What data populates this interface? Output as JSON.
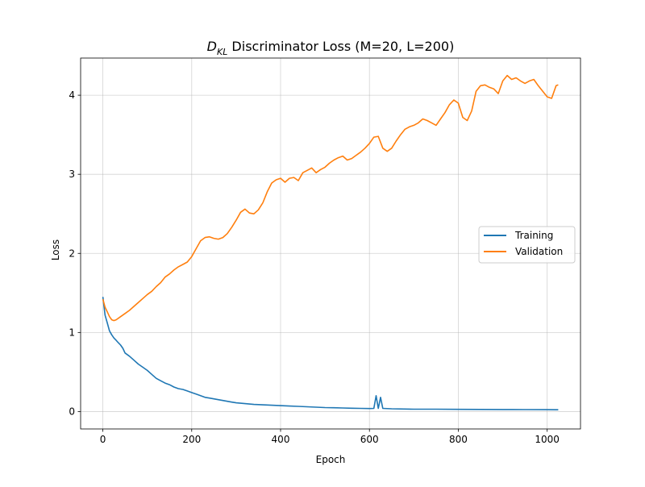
{
  "chart_data": {
    "type": "line",
    "title_main": "D",
    "title_sub": "KL",
    "title_rest": " Discriminator Loss (M=20, L=200)",
    "xlabel": "Epoch",
    "ylabel": "Loss",
    "xlim": [
      -50,
      1075
    ],
    "ylim": [
      -0.22,
      4.47
    ],
    "xticks": [
      0,
      200,
      400,
      600,
      800,
      1000
    ],
    "yticks": [
      0,
      1,
      2,
      3,
      4
    ],
    "grid": true,
    "legend_position": "center-right",
    "series": [
      {
        "name": "Training",
        "color": "#1f77b4",
        "x": [
          0,
          5,
          10,
          15,
          20,
          25,
          30,
          35,
          40,
          45,
          50,
          60,
          70,
          80,
          90,
          100,
          110,
          120,
          130,
          140,
          150,
          160,
          170,
          180,
          190,
          200,
          210,
          220,
          230,
          240,
          250,
          260,
          270,
          280,
          290,
          300,
          320,
          340,
          360,
          380,
          400,
          420,
          440,
          460,
          480,
          500,
          520,
          540,
          560,
          580,
          600,
          610,
          615,
          620,
          625,
          630,
          650,
          700,
          750,
          800,
          850,
          900,
          950,
          1000,
          1020,
          1025
        ],
        "y": [
          1.45,
          1.22,
          1.12,
          1.02,
          0.97,
          0.93,
          0.9,
          0.87,
          0.84,
          0.8,
          0.74,
          0.7,
          0.65,
          0.6,
          0.56,
          0.52,
          0.47,
          0.42,
          0.39,
          0.36,
          0.34,
          0.31,
          0.29,
          0.28,
          0.26,
          0.24,
          0.22,
          0.2,
          0.18,
          0.17,
          0.16,
          0.15,
          0.14,
          0.13,
          0.12,
          0.11,
          0.1,
          0.09,
          0.085,
          0.08,
          0.075,
          0.07,
          0.065,
          0.06,
          0.055,
          0.05,
          0.048,
          0.045,
          0.042,
          0.04,
          0.038,
          0.04,
          0.2,
          0.04,
          0.18,
          0.04,
          0.035,
          0.03,
          0.03,
          0.028,
          0.027,
          0.026,
          0.025,
          0.024,
          0.023,
          0.023
        ]
      },
      {
        "name": "Validation",
        "color": "#ff7f0e",
        "x": [
          0,
          5,
          10,
          15,
          20,
          25,
          30,
          40,
          50,
          60,
          70,
          80,
          90,
          100,
          110,
          120,
          130,
          140,
          150,
          160,
          170,
          180,
          190,
          200,
          210,
          220,
          230,
          240,
          250,
          260,
          270,
          280,
          290,
          300,
          310,
          320,
          330,
          340,
          350,
          360,
          370,
          380,
          390,
          400,
          410,
          420,
          430,
          440,
          450,
          460,
          470,
          480,
          490,
          500,
          510,
          520,
          530,
          540,
          550,
          560,
          570,
          580,
          590,
          600,
          610,
          620,
          630,
          640,
          650,
          660,
          670,
          680,
          690,
          700,
          710,
          720,
          730,
          740,
          750,
          760,
          770,
          780,
          790,
          800,
          810,
          820,
          830,
          840,
          850,
          860,
          870,
          880,
          890,
          900,
          910,
          920,
          930,
          940,
          950,
          960,
          970,
          980,
          990,
          1000,
          1010,
          1020,
          1025
        ],
        "y": [
          1.42,
          1.32,
          1.26,
          1.2,
          1.16,
          1.15,
          1.16,
          1.2,
          1.24,
          1.28,
          1.33,
          1.38,
          1.43,
          1.48,
          1.52,
          1.58,
          1.63,
          1.7,
          1.74,
          1.79,
          1.83,
          1.86,
          1.89,
          1.96,
          2.06,
          2.16,
          2.2,
          2.21,
          2.19,
          2.18,
          2.2,
          2.25,
          2.33,
          2.42,
          2.52,
          2.56,
          2.51,
          2.5,
          2.55,
          2.64,
          2.78,
          2.89,
          2.93,
          2.95,
          2.9,
          2.95,
          2.96,
          2.92,
          3.02,
          3.05,
          3.08,
          3.02,
          3.06,
          3.09,
          3.14,
          3.18,
          3.21,
          3.23,
          3.18,
          3.2,
          3.24,
          3.28,
          3.33,
          3.39,
          3.47,
          3.48,
          3.33,
          3.29,
          3.33,
          3.42,
          3.5,
          3.57,
          3.6,
          3.62,
          3.65,
          3.7,
          3.68,
          3.65,
          3.62,
          3.7,
          3.78,
          3.88,
          3.94,
          3.9,
          3.72,
          3.68,
          3.8,
          4.05,
          4.12,
          4.13,
          4.1,
          4.08,
          4.02,
          4.18,
          4.25,
          4.2,
          4.22,
          4.18,
          4.15,
          4.18,
          4.2,
          4.12,
          4.05,
          3.98,
          3.96,
          4.12,
          4.13
        ]
      }
    ]
  }
}
